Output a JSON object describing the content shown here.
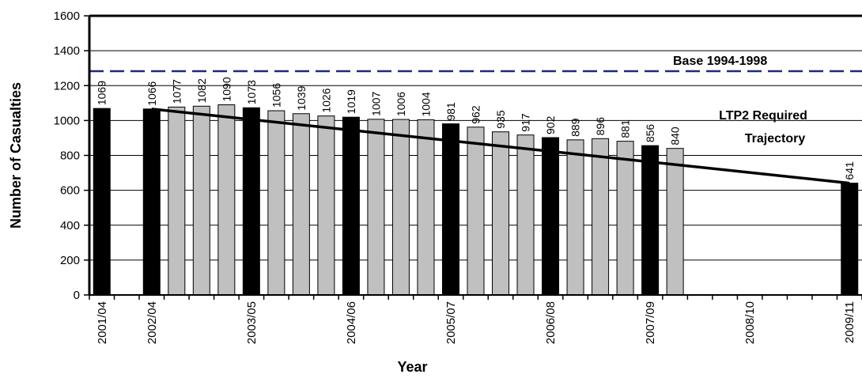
{
  "chart_data": {
    "type": "bar",
    "xlabel": "Year",
    "ylabel": "Number of Casualties",
    "ylim": [
      0,
      1600
    ],
    "yticks": [
      0,
      200,
      400,
      600,
      800,
      1000,
      1200,
      1400,
      1600
    ],
    "grid": "horizontal",
    "categories": [
      "2001/04",
      "",
      "2002/04",
      "",
      "",
      "",
      "2003/05",
      "",
      "",
      "",
      "2004/06",
      "",
      "",
      "",
      "2005/07",
      "",
      "",
      "",
      "2006/08",
      "",
      "",
      "",
      "2007/09",
      "",
      "",
      "",
      "2008/10",
      "",
      "",
      "",
      "2009/11"
    ],
    "series": [
      {
        "style": "annual",
        "color": "#000000",
        "values": [
          1069,
          null,
          1066,
          null,
          null,
          null,
          1073,
          null,
          null,
          null,
          1019,
          null,
          null,
          null,
          981,
          null,
          null,
          null,
          902,
          null,
          null,
          null,
          856,
          null,
          null,
          null,
          null,
          null,
          null,
          null,
          641
        ]
      },
      {
        "style": "rolling",
        "color": "#c0c0c0",
        "values": [
          null,
          null,
          null,
          1077,
          1082,
          1090,
          null,
          1056,
          1039,
          1026,
          null,
          1007,
          1006,
          1004,
          null,
          962,
          935,
          917,
          null,
          889,
          896,
          881,
          null,
          840,
          null,
          null,
          null,
          null,
          null,
          null,
          null
        ]
      }
    ],
    "reference_lines": [
      {
        "label": "Base 1994-1998",
        "value": 1283,
        "style": "dashed",
        "color": "#1f2a7a"
      }
    ],
    "trajectory": {
      "label_lines": [
        "LTP2 Required",
        "Trajectory"
      ],
      "start": {
        "x": "2002/04",
        "y": 1066
      },
      "end": {
        "x": "2009/11",
        "y": 641
      },
      "color": "#000000"
    }
  }
}
